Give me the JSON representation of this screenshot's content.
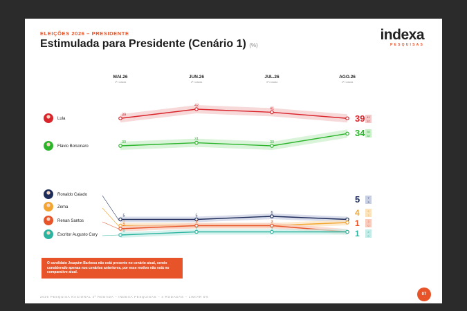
{
  "header": {
    "kicker": "ELEIÇÕES 2026 – PRESIDENTE",
    "title": "Estimulada para Presidente (Cenário 1)",
    "unit": "(%)"
  },
  "logo": {
    "brand": "indexa",
    "sub": "PESQUISAS"
  },
  "chart_data": {
    "type": "line",
    "categories": [
      "MAI.26",
      "JUN.26",
      "JUL.26",
      "AGO.26"
    ],
    "sublabels": [
      "1ª rodada",
      "2ª rodada",
      "3ª rodada",
      "4ª rodada"
    ],
    "series": [
      {
        "name": "Lula",
        "values": [
          39,
          42,
          41,
          39
        ],
        "color": "#d9242b",
        "band_color": "#f3c9c9",
        "final_high": 41,
        "final_low": 37,
        "icon": "lula-avatar-icon"
      },
      {
        "name": "Flávio Bolsonaro",
        "values": [
          30,
          31,
          30,
          34
        ],
        "color": "#2cb52c",
        "band_color": "#c9efc9",
        "final_high": 36,
        "final_low": 32,
        "icon": "flavio-bolsonaro-avatar-icon"
      },
      {
        "name": "Ronaldo Caiado",
        "values": [
          5,
          5,
          6,
          5
        ],
        "color": "#1e2c5a",
        "band_color": "#c9cfe3",
        "final_high": 7,
        "final_low": 3,
        "icon": "ronaldo-caiado-avatar-icon"
      },
      {
        "name": "Zema",
        "values": [
          3,
          3,
          3,
          4
        ],
        "color": "#f2a531",
        "band_color": "#fbe3bd",
        "final_high": 6,
        "final_low": 2,
        "icon": "zema-avatar-icon"
      },
      {
        "name": "Renan Santos",
        "values": [
          2,
          3,
          3,
          1
        ],
        "color": "#e8542a",
        "band_color": "#f8cbbd",
        "final_high": 3,
        "final_low": 0,
        "icon": "renan-santos-avatar-icon"
      },
      {
        "name": "Escritor Augusto Cury",
        "values": [
          0,
          1,
          1,
          1
        ],
        "color": "#2bb3a0",
        "band_color": "#c4ece6",
        "final_high": 2,
        "final_low": 0,
        "icon": "augusto-cury-avatar-icon"
      }
    ],
    "grid": false,
    "legend": "left"
  },
  "note": "O candidato Joaquim Barbosa não está presente no cenário atual, sendo considerado apenas nos cenários anteriores, por esse motivo não está no comparativo atual.",
  "footer": "2026 PESQUISA NACIONAL 4ª RODADA – INDEXA PESQUISAS – 4 RODADAS – LIMIAR 5%",
  "page_number": "07"
}
